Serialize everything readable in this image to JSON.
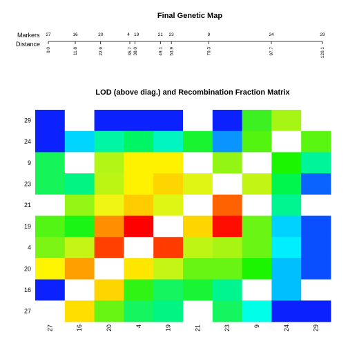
{
  "chart_data": [
    {
      "type": "genetic-map",
      "title": "Final Genetic Map",
      "row_labels": {
        "markers": "Markers",
        "distance": "Distance"
      },
      "markers": [
        "27",
        "16",
        "20",
        "4",
        "19",
        "21",
        "23",
        "9",
        "24",
        "29"
      ],
      "distances": [
        0.0,
        11.8,
        22.9,
        35.7,
        38.0,
        49.1,
        53.9,
        70.3,
        97.7,
        120.1
      ],
      "distance_labels": [
        "0.0",
        "11.8",
        "22.9",
        "35.7",
        "38.0",
        "49.1",
        "53.9",
        "70.3",
        "97.7",
        "120.1"
      ],
      "xlim": [
        0.0,
        120.1
      ]
    },
    {
      "type": "heatmap",
      "title": "LOD (above diag.) and Recombination Fraction Matrix",
      "x_categories": [
        "27",
        "16",
        "20",
        "4",
        "19",
        "21",
        "23",
        "9",
        "24",
        "29"
      ],
      "y_categories": [
        "27",
        "16",
        "20",
        "4",
        "19",
        "21",
        "23",
        "9",
        "24",
        "29"
      ],
      "legend": "none",
      "grid": false,
      "rows_top_to_bottom": [
        {
          "y": "29",
          "colors": [
            "#0b22ff",
            "#ffffff",
            "#0b22ff",
            "#0b22ff",
            "#0b22ff",
            "#ffffff",
            "#0b22ff",
            "#3cf022",
            "#a6f514",
            "#ffffff"
          ]
        },
        {
          "y": "24",
          "colors": [
            "#0b22ff",
            "#00d5ff",
            "#00f5a5",
            "#00f565",
            "#00f5c0",
            "#18f530",
            "#0a94ff",
            "#53f510",
            "#ffffff",
            "#5af510"
          ]
        },
        {
          "y": "9",
          "colors": [
            "#15f55a",
            "#ffffff",
            "#b3f514",
            "#fff200",
            "#fff200",
            "#ffffff",
            "#92f514",
            "#ffffff",
            "#1bf500",
            "#00f598"
          ]
        },
        {
          "y": "23",
          "colors": [
            "#15f55a",
            "#00f582",
            "#bcf514",
            "#fff200",
            "#ffd500",
            "#e0f514",
            "#ffffff",
            "#c3f514",
            "#00f54d",
            "#0a62ff"
          ]
        },
        {
          "y": "21",
          "colors": [
            "#ffffff",
            "#95f514",
            "#f0f514",
            "#ffcc00",
            "#dff514",
            "#ffffff",
            "#ff6200",
            "#ffffff",
            "#00f591",
            "#ffffff"
          ]
        },
        {
          "y": "19",
          "colors": [
            "#53f514",
            "#1bf515",
            "#ff8f00",
            "#ff0000",
            "#ffffff",
            "#ffd500",
            "#ff0d00",
            "#6af514",
            "#00d2ff",
            "#0a4fff"
          ]
        },
        {
          "y": "4",
          "colors": [
            "#7df514",
            "#c5f514",
            "#ff4000",
            "#ffffff",
            "#ff3b00",
            "#bef514",
            "#a8f514",
            "#6af514",
            "#00efff",
            "#0a4fff"
          ]
        },
        {
          "y": "20",
          "colors": [
            "#fff500",
            "#ffa000",
            "#ffffff",
            "#ffe600",
            "#c5f514",
            "#68f514",
            "#68f514",
            "#1bf500",
            "#00bfff",
            "#0a4fff"
          ]
        },
        {
          "y": "16",
          "colors": [
            "#0b22ff",
            "#ffffff",
            "#ffd500",
            "#30f514",
            "#15f560",
            "#18f535",
            "#00f591",
            "#ffffff",
            "#00bfff",
            "#ffffff"
          ]
        },
        {
          "y": "27",
          "colors": [
            "#ffffff",
            "#ffde00",
            "#68f514",
            "#15f560",
            "#00f582",
            "#ffffff",
            "#15f560",
            "#00ffe6",
            "#0b22ff",
            "#0b22ff"
          ]
        }
      ]
    }
  ]
}
